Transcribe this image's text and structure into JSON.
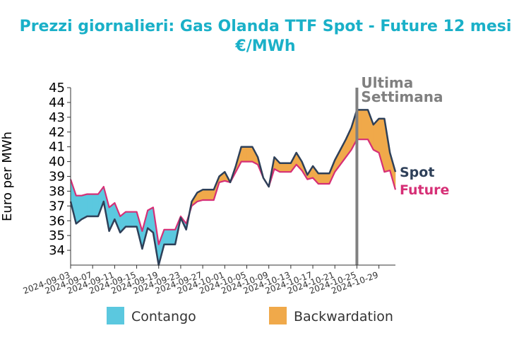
{
  "chart_data": {
    "type": "area",
    "title": "Prezzi giornalieri: Gas Olanda TTF Spot - Future 12 mesi",
    "subtitle": "€/MWh",
    "ylabel": "Euro per MWh",
    "xlabel": "",
    "ylim": [
      33,
      45
    ],
    "yticks": [
      34,
      35,
      36,
      37,
      38,
      39,
      40,
      41,
      42,
      43,
      44,
      45
    ],
    "xticks": [
      "2024-09-03",
      "2024-09-07",
      "2024-09-11",
      "2024-09-15",
      "2024-09-19",
      "2024-09-23",
      "2024-09-27",
      "2024-10-01",
      "2024-10-05",
      "2024-10-09",
      "2024-10-13",
      "2024-10-17",
      "2024-10-21",
      "2024-10-25",
      "2024-10-29"
    ],
    "x_start": "2024-09-03",
    "x_end": "2024-11-01",
    "annotation": {
      "text_line1": "Ultima",
      "text_line2": "Settimana",
      "x": "2024-10-25"
    },
    "legend": {
      "placement": "bottom",
      "items": [
        {
          "label": "Contango",
          "color": "#5bc8df"
        },
        {
          "label": "Backwardation",
          "color": "#f0a94a"
        }
      ]
    },
    "series": [
      {
        "name": "Spot",
        "color": "#2e4059",
        "points": [
          [
            "2024-09-03",
            37.3
          ],
          [
            "2024-09-04",
            35.8
          ],
          [
            "2024-09-05",
            36.1
          ],
          [
            "2024-09-06",
            36.3
          ],
          [
            "2024-09-07",
            36.3
          ],
          [
            "2024-09-08",
            36.3
          ],
          [
            "2024-09-09",
            37.3
          ],
          [
            "2024-09-10",
            35.3
          ],
          [
            "2024-09-11",
            36.1
          ],
          [
            "2024-09-12",
            35.2
          ],
          [
            "2024-09-13",
            35.6
          ],
          [
            "2024-09-14",
            35.6
          ],
          [
            "2024-09-15",
            35.6
          ],
          [
            "2024-09-16",
            34.1
          ],
          [
            "2024-09-17",
            35.5
          ],
          [
            "2024-09-18",
            35.2
          ],
          [
            "2024-09-19",
            33.0
          ],
          [
            "2024-09-20",
            34.4
          ],
          [
            "2024-09-21",
            34.4
          ],
          [
            "2024-09-22",
            34.4
          ],
          [
            "2024-09-23",
            36.2
          ],
          [
            "2024-09-24",
            35.4
          ],
          [
            "2024-09-25",
            37.3
          ],
          [
            "2024-09-26",
            37.9
          ],
          [
            "2024-09-27",
            38.1
          ],
          [
            "2024-09-28",
            38.1
          ],
          [
            "2024-09-29",
            38.1
          ],
          [
            "2024-09-30",
            39.0
          ],
          [
            "2024-10-01",
            39.3
          ],
          [
            "2024-10-02",
            38.6
          ],
          [
            "2024-10-03",
            39.7
          ],
          [
            "2024-10-04",
            41.0
          ],
          [
            "2024-10-05",
            41.0
          ],
          [
            "2024-10-06",
            41.0
          ],
          [
            "2024-10-07",
            40.3
          ],
          [
            "2024-10-08",
            38.9
          ],
          [
            "2024-10-09",
            38.3
          ],
          [
            "2024-10-10",
            40.3
          ],
          [
            "2024-10-11",
            39.9
          ],
          [
            "2024-10-12",
            39.9
          ],
          [
            "2024-10-13",
            39.9
          ],
          [
            "2024-10-14",
            40.6
          ],
          [
            "2024-10-15",
            40.0
          ],
          [
            "2024-10-16",
            39.1
          ],
          [
            "2024-10-17",
            39.7
          ],
          [
            "2024-10-18",
            39.2
          ],
          [
            "2024-10-19",
            39.2
          ],
          [
            "2024-10-20",
            39.2
          ],
          [
            "2024-10-21",
            40.1
          ],
          [
            "2024-10-22",
            40.8
          ],
          [
            "2024-10-23",
            41.5
          ],
          [
            "2024-10-24",
            42.3
          ],
          [
            "2024-10-25",
            43.5
          ],
          [
            "2024-10-26",
            43.5
          ],
          [
            "2024-10-27",
            43.5
          ],
          [
            "2024-10-28",
            42.5
          ],
          [
            "2024-10-29",
            42.9
          ],
          [
            "2024-10-30",
            42.9
          ],
          [
            "2024-10-31",
            40.6
          ],
          [
            "2024-11-01",
            39.3
          ]
        ]
      },
      {
        "name": "Future",
        "color": "#d62f76",
        "points": [
          [
            "2024-09-03",
            38.8
          ],
          [
            "2024-09-04",
            37.7
          ],
          [
            "2024-09-05",
            37.7
          ],
          [
            "2024-09-06",
            37.8
          ],
          [
            "2024-09-07",
            37.8
          ],
          [
            "2024-09-08",
            37.8
          ],
          [
            "2024-09-09",
            38.3
          ],
          [
            "2024-09-10",
            36.9
          ],
          [
            "2024-09-11",
            37.2
          ],
          [
            "2024-09-12",
            36.3
          ],
          [
            "2024-09-13",
            36.6
          ],
          [
            "2024-09-14",
            36.6
          ],
          [
            "2024-09-15",
            36.6
          ],
          [
            "2024-09-16",
            35.3
          ],
          [
            "2024-09-17",
            36.7
          ],
          [
            "2024-09-18",
            36.9
          ],
          [
            "2024-09-19",
            34.4
          ],
          [
            "2024-09-20",
            35.4
          ],
          [
            "2024-09-21",
            35.4
          ],
          [
            "2024-09-22",
            35.4
          ],
          [
            "2024-09-23",
            36.3
          ],
          [
            "2024-09-24",
            35.8
          ],
          [
            "2024-09-25",
            37.0
          ],
          [
            "2024-09-26",
            37.3
          ],
          [
            "2024-09-27",
            37.4
          ],
          [
            "2024-09-28",
            37.4
          ],
          [
            "2024-09-29",
            37.4
          ],
          [
            "2024-09-30",
            38.6
          ],
          [
            "2024-10-01",
            38.7
          ],
          [
            "2024-10-02",
            38.6
          ],
          [
            "2024-10-03",
            39.3
          ],
          [
            "2024-10-04",
            40.0
          ],
          [
            "2024-10-05",
            40.0
          ],
          [
            "2024-10-06",
            40.0
          ],
          [
            "2024-10-07",
            39.8
          ],
          [
            "2024-10-08",
            38.9
          ],
          [
            "2024-10-09",
            38.3
          ],
          [
            "2024-10-10",
            39.5
          ],
          [
            "2024-10-11",
            39.3
          ],
          [
            "2024-10-12",
            39.3
          ],
          [
            "2024-10-13",
            39.3
          ],
          [
            "2024-10-14",
            39.8
          ],
          [
            "2024-10-15",
            39.4
          ],
          [
            "2024-10-16",
            38.8
          ],
          [
            "2024-10-17",
            38.9
          ],
          [
            "2024-10-18",
            38.5
          ],
          [
            "2024-10-19",
            38.5
          ],
          [
            "2024-10-20",
            38.5
          ],
          [
            "2024-10-21",
            39.3
          ],
          [
            "2024-10-22",
            39.8
          ],
          [
            "2024-10-23",
            40.3
          ],
          [
            "2024-10-24",
            40.8
          ],
          [
            "2024-10-25",
            41.5
          ],
          [
            "2024-10-26",
            41.5
          ],
          [
            "2024-10-27",
            41.5
          ],
          [
            "2024-10-28",
            40.8
          ],
          [
            "2024-10-29",
            40.6
          ],
          [
            "2024-10-30",
            39.3
          ],
          [
            "2024-10-31",
            39.4
          ],
          [
            "2024-11-01",
            38.1
          ]
        ]
      }
    ]
  }
}
